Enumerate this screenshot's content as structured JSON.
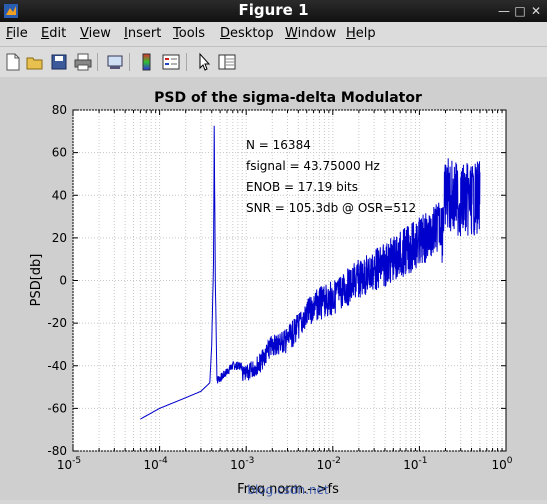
{
  "window": {
    "title": "Figure 1"
  },
  "menu": [
    {
      "label": "File",
      "ul": "F",
      "rest": "ile"
    },
    {
      "label": "Edit",
      "ul": "E",
      "rest": "dit"
    },
    {
      "label": "View",
      "ul": "V",
      "rest": "iew"
    },
    {
      "label": "Insert",
      "ul": "I",
      "rest": "nsert"
    },
    {
      "label": "Tools",
      "ul": "T",
      "rest": "ools"
    },
    {
      "label": "Desktop",
      "ul": "D",
      "rest": "esktop"
    },
    {
      "label": "Window",
      "ul": "W",
      "rest": "indow"
    },
    {
      "label": "Help",
      "ul": "H",
      "rest": "elp"
    }
  ],
  "toolbar": [
    "new-figure-icon",
    "open-file-icon",
    "save-icon",
    "print-icon",
    "link-plot-icon",
    "colorbar-icon",
    "legend-icon",
    "pointer-icon",
    "plot-tools-icon"
  ],
  "chart_data": {
    "type": "line",
    "title": "PSD of the sigma-delta Modulator",
    "xlabel": "Freq.norm.-->fs",
    "ylabel": "PSD[db]",
    "xscale": "log",
    "xlim": [
      1e-05,
      1
    ],
    "ylim": [
      -80,
      80
    ],
    "xticks": [
      "10^-5",
      "10^-4",
      "10^-3",
      "10^-2",
      "10^-1",
      "10^0"
    ],
    "yticks": [
      80,
      60,
      40,
      20,
      0,
      -20,
      -40,
      -60,
      -80
    ],
    "grid": true,
    "line_color": "#0000cc",
    "watermark": "blog.csdn.net",
    "annotations": [
      "N = 16384",
      "fsignal = 43.75000 Hz",
      "ENOB = 17.19 bits",
      "SNR = 105.3db @ OSR=512"
    ],
    "series": [
      {
        "x": [
          6e-05,
          0.0001,
          0.0002,
          0.0003,
          0.00038,
          0.0004,
          0.00042,
          0.000427,
          0.00044,
          0.00046,
          0.00048,
          0.0005,
          0.0007,
          0.001,
          0.0015,
          0.002,
          0.003,
          0.004,
          0.006,
          0.01,
          0.02,
          0.04,
          0.08,
          0.15,
          0.18,
          0.2,
          0.3,
          0.5
        ],
        "y": [
          -65,
          -60,
          -55,
          -52,
          -48,
          -30,
          10,
          74,
          0,
          -47,
          -46,
          -46,
          -40,
          -40,
          -33,
          -25,
          -22,
          -15,
          -5,
          0,
          10,
          18,
          27,
          35,
          40,
          58,
          55,
          56
        ]
      }
    ]
  }
}
